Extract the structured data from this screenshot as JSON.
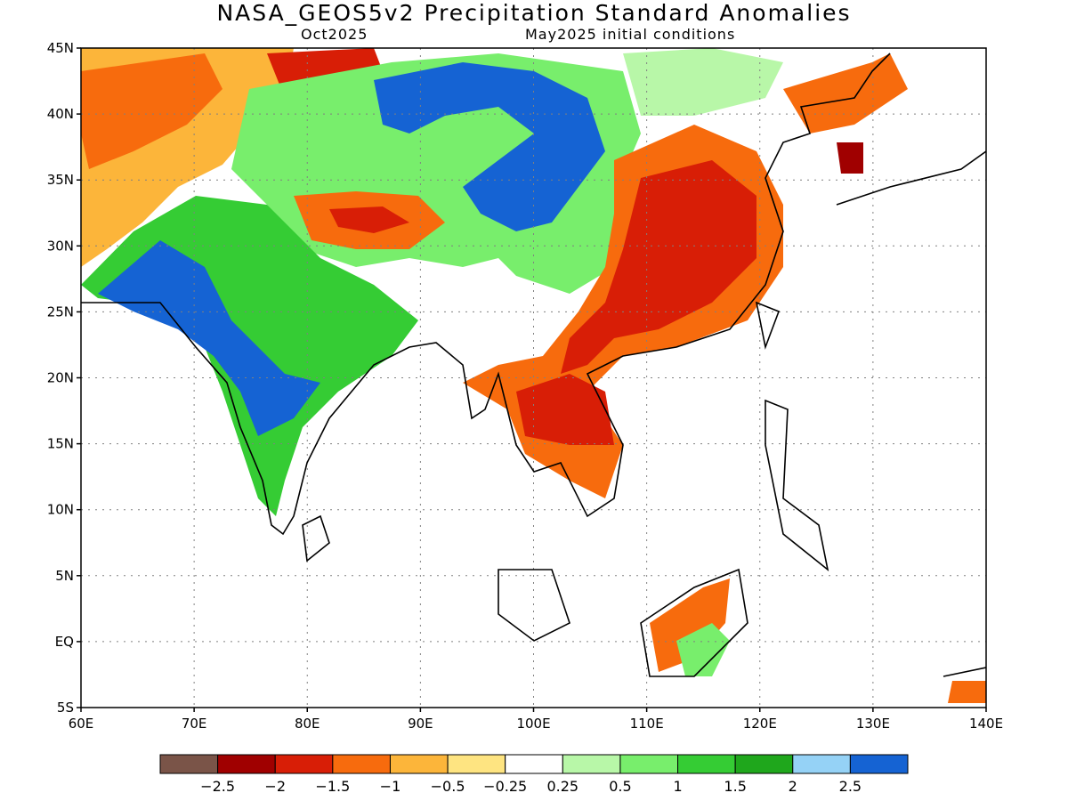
{
  "title": "NASA_GEOS5v2 Precipitation Standard Anomalies",
  "valid_month": "Oct2025",
  "initial_conditions": "May2025 initial conditions",
  "lat_labels": [
    "45N",
    "40N",
    "35N",
    "30N",
    "25N",
    "20N",
    "15N",
    "10N",
    "5N",
    "EQ",
    "5S"
  ],
  "lon_labels": [
    "60E",
    "70E",
    "80E",
    "90E",
    "100E",
    "110E",
    "120E",
    "130E",
    "140E"
  ],
  "colorbar": {
    "colors": [
      "#7a5448",
      "#a00000",
      "#d81e06",
      "#f76b0d",
      "#fcb53a",
      "#fee481",
      "#ffffff",
      "#b8f7a8",
      "#78ee6c",
      "#35cc34",
      "#1fa71c",
      "#95d2f6",
      "#1563d3"
    ],
    "labels": [
      "−2.5",
      "−2",
      "−1.5",
      "−1",
      "−0.5",
      "−0.25",
      "0.25",
      "0.5",
      "1",
      "1.5",
      "2",
      "2.5"
    ]
  }
}
